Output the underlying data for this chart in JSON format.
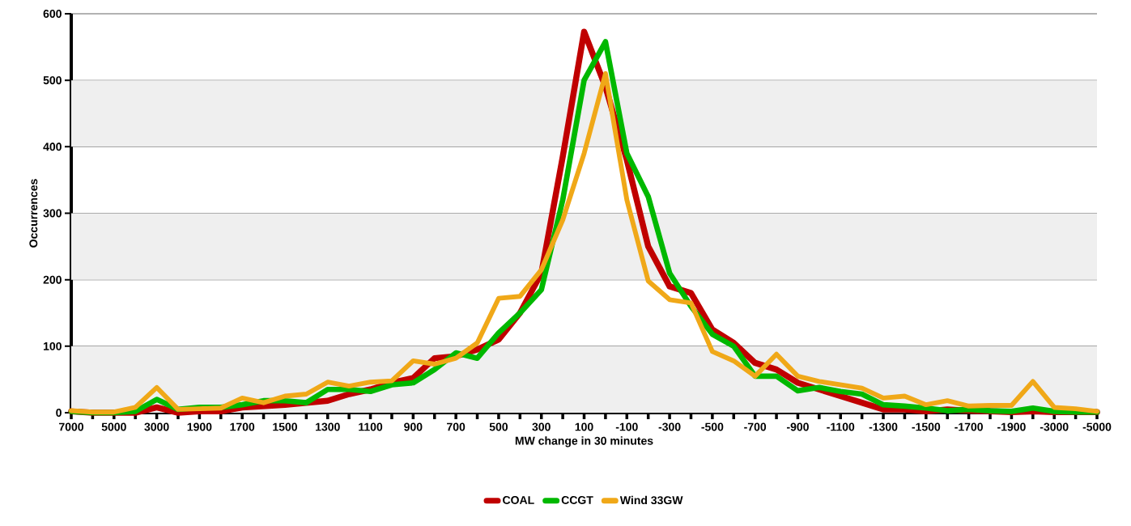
{
  "chart_data": {
    "type": "line",
    "xlabel": "MW change in 30 minutes",
    "ylabel": "Occurrences",
    "categories": [
      "7000",
      null,
      "5000",
      null,
      "3000",
      null,
      "1900",
      null,
      "1700",
      null,
      "1500",
      null,
      "1300",
      null,
      "1100",
      null,
      "900",
      null,
      "700",
      null,
      "500",
      null,
      "300",
      null,
      "100",
      null,
      "-100",
      null,
      "-300",
      null,
      "-500",
      null,
      "-700",
      null,
      "-900",
      null,
      "-1100",
      null,
      "-1300",
      null,
      "-1500",
      null,
      "-1700",
      null,
      "-1900",
      null,
      "-3000",
      null,
      "-5000"
    ],
    "series": [
      {
        "name": "COAL",
        "color": "#c00000",
        "values": [
          2,
          0,
          0,
          0,
          8,
          0,
          2,
          2,
          8,
          10,
          12,
          15,
          18,
          28,
          35,
          45,
          52,
          82,
          85,
          95,
          110,
          150,
          210,
          385,
          573,
          490,
          380,
          250,
          190,
          180,
          125,
          105,
          75,
          65,
          45,
          35,
          25,
          15,
          5,
          5,
          2,
          5,
          3,
          2,
          1,
          2,
          1,
          null,
          1
        ]
      },
      {
        "name": "CCGT",
        "color": "#00b800",
        "values": [
          2,
          0,
          0,
          2,
          20,
          5,
          8,
          8,
          12,
          18,
          18,
          15,
          35,
          35,
          32,
          42,
          45,
          65,
          90,
          82,
          120,
          150,
          185,
          320,
          500,
          558,
          390,
          325,
          210,
          160,
          118,
          100,
          55,
          55,
          33,
          38,
          32,
          28,
          12,
          10,
          7,
          3,
          5,
          3,
          2,
          7,
          2,
          1,
          1
        ]
      },
      {
        "name": "Wind 33GW",
        "color": "#f0a818",
        "values": [
          3,
          1,
          1,
          8,
          38,
          5,
          6,
          7,
          22,
          15,
          25,
          28,
          46,
          40,
          46,
          48,
          78,
          73,
          82,
          105,
          172,
          175,
          215,
          290,
          390,
          510,
          320,
          198,
          170,
          165,
          92,
          78,
          55,
          88,
          55,
          47,
          42,
          37,
          22,
          25,
          12,
          18,
          10,
          11,
          11,
          47,
          8,
          6,
          2
        ]
      }
    ],
    "ylim": [
      0,
      600
    ],
    "yticks": [
      0,
      100,
      200,
      300,
      400,
      500,
      600
    ],
    "grid": "y",
    "legend": "bottom",
    "bands": [
      {
        "axis": "y",
        "from": 0,
        "to": 100,
        "color": "#efefef"
      },
      {
        "axis": "y",
        "from": 200,
        "to": 300,
        "color": "#efefef"
      },
      {
        "axis": "y",
        "from": 400,
        "to": 500,
        "color": "#efefef"
      }
    ]
  }
}
